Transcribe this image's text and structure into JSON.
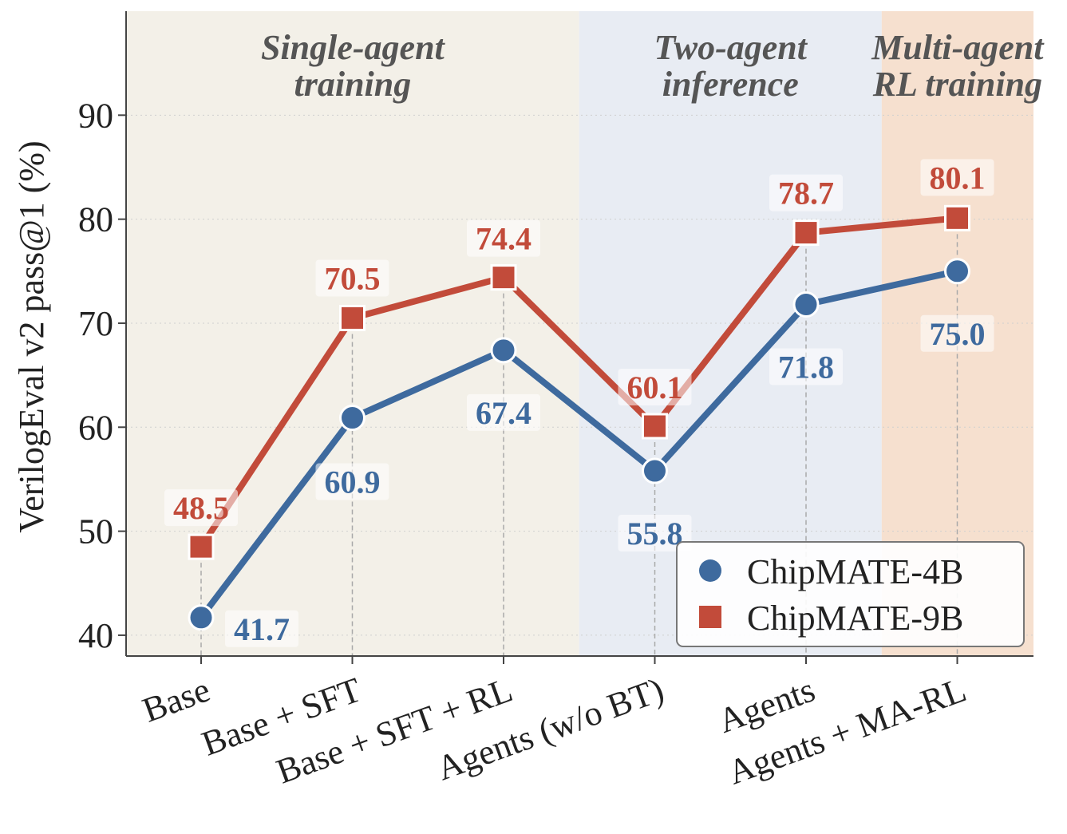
{
  "chart_data": {
    "type": "line",
    "categories": [
      "Base",
      "Base + SFT",
      "Base + SFT + RL",
      "Agents (w/o BT)",
      "Agents",
      "Agents + MA-RL"
    ],
    "series": [
      {
        "name": "ChipMATE-4B",
        "values": [
          41.7,
          60.9,
          67.4,
          55.8,
          71.8,
          75.0
        ],
        "labels": [
          "41.7",
          "60.9",
          "67.4",
          "55.8",
          "71.8",
          "75.0"
        ],
        "color": "#3e6a9e",
        "marker": "circle"
      },
      {
        "name": "ChipMATE-9B",
        "values": [
          48.5,
          70.5,
          74.4,
          60.1,
          78.7,
          80.1
        ],
        "labels": [
          "48.5",
          "70.5",
          "74.4",
          "60.1",
          "78.7",
          "80.1"
        ],
        "color": "#c24b3a",
        "marker": "square"
      }
    ],
    "ylabel": "VerilogEval v2 pass@1 (%)",
    "xlabel": "",
    "ylim": [
      38,
      100
    ],
    "yticks": [
      40,
      50,
      60,
      70,
      80,
      90
    ],
    "ytick_labels": [
      "40",
      "50",
      "60",
      "70",
      "80",
      "90"
    ],
    "grid": "y-dotted",
    "legend": "bottom-right",
    "regions": [
      {
        "title_line1": "Single-agent",
        "title_line2": "training",
        "from": "Base",
        "to": "Base + SFT + RL",
        "color": "#f3f0e8"
      },
      {
        "title_line1": "Two-agent",
        "title_line2": "inference",
        "from": "Agents (w/o BT)",
        "to": "Agents",
        "color": "#e8ecf3"
      },
      {
        "title_line1": "Multi-agent",
        "title_line2": "RL training",
        "from": "Agents + MA-RL",
        "to": "Agents + MA-RL",
        "color": "#f6e0cf"
      }
    ]
  }
}
